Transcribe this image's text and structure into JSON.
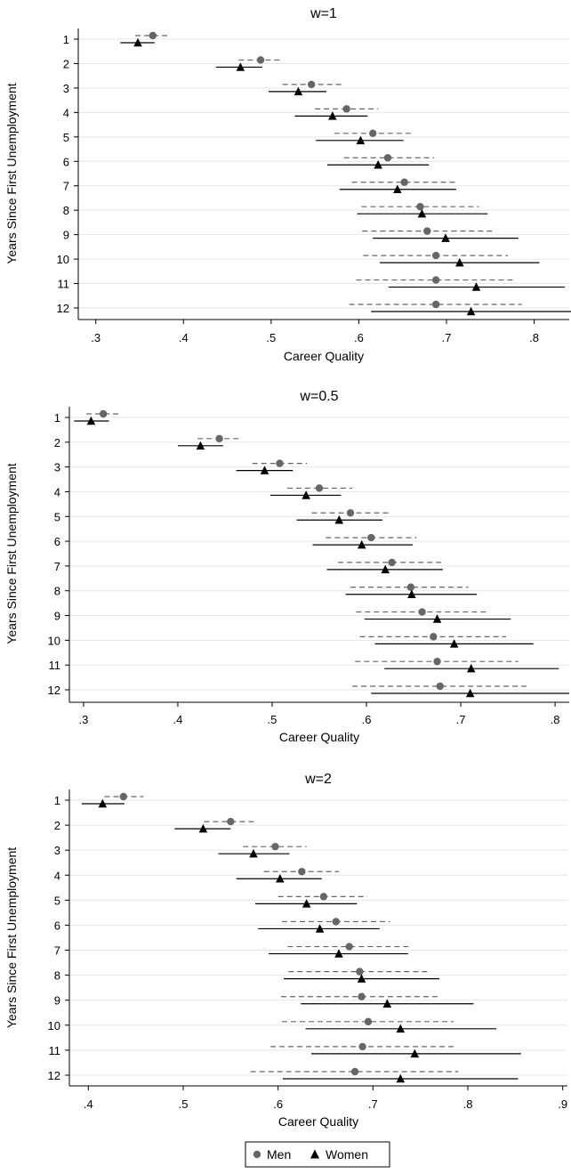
{
  "figure": {
    "legend": {
      "placement": "bottom-center",
      "entries": [
        {
          "label": "Men",
          "marker": "circle",
          "color": "#666666",
          "line": "dashed"
        },
        {
          "label": "Women",
          "marker": "triangle",
          "color": "#000000",
          "line": "solid"
        }
      ]
    }
  },
  "chart_data": [
    {
      "type": "scatter",
      "title": "w=1",
      "xlabel": "Career Quality",
      "ylabel": "Years Since First Unemployment",
      "xlim": [
        0.28,
        0.84
      ],
      "xticks": [
        0.3,
        0.4,
        0.5,
        0.6,
        0.7,
        0.8
      ],
      "xtick_labels": [
        ".3",
        ".4",
        ".5",
        ".6",
        ".7",
        ".8"
      ],
      "categories": [
        "1",
        "2",
        "3",
        "4",
        "5",
        "6",
        "7",
        "8",
        "9",
        "10",
        "11",
        "12"
      ],
      "grid": "horizontal",
      "series": [
        {
          "name": "Men",
          "color": "#666666",
          "marker": "circle",
          "line": "dashed",
          "values": [
            0.365,
            0.488,
            0.546,
            0.586,
            0.616,
            0.633,
            0.652,
            0.67,
            0.678,
            0.688,
            0.688,
            0.688
          ],
          "lower": [
            0.345,
            0.463,
            0.513,
            0.55,
            0.572,
            0.583,
            0.592,
            0.603,
            0.604,
            0.605,
            0.597,
            0.589
          ],
          "upper": [
            0.383,
            0.512,
            0.58,
            0.622,
            0.66,
            0.686,
            0.712,
            0.737,
            0.752,
            0.77,
            0.778,
            0.786
          ]
        },
        {
          "name": "Women",
          "color": "#000000",
          "marker": "triangle",
          "line": "solid",
          "values": [
            0.348,
            0.465,
            0.531,
            0.57,
            0.602,
            0.622,
            0.644,
            0.672,
            0.699,
            0.715,
            0.734,
            0.728
          ],
          "lower": [
            0.328,
            0.437,
            0.497,
            0.527,
            0.551,
            0.564,
            0.578,
            0.598,
            0.616,
            0.624,
            0.634,
            0.614
          ],
          "upper": [
            0.367,
            0.49,
            0.563,
            0.61,
            0.651,
            0.68,
            0.711,
            0.747,
            0.782,
            0.806,
            0.835,
            0.842
          ]
        }
      ]
    },
    {
      "type": "scatter",
      "title": "w=0.5",
      "xlabel": "Career Quality",
      "ylabel": "Years Since First Unemployment",
      "xlim": [
        0.285,
        0.815
      ],
      "xticks": [
        0.3,
        0.4,
        0.5,
        0.6,
        0.7,
        0.8
      ],
      "xtick_labels": [
        ".3",
        ".4",
        ".5",
        ".6",
        ".7",
        ".8"
      ],
      "categories": [
        "1",
        "2",
        "3",
        "4",
        "5",
        "6",
        "7",
        "8",
        "9",
        "10",
        "11",
        "12"
      ],
      "grid": "horizontal",
      "series": [
        {
          "name": "Men",
          "color": "#666666",
          "marker": "circle",
          "line": "dashed",
          "values": [
            0.321,
            0.444,
            0.508,
            0.55,
            0.583,
            0.605,
            0.627,
            0.647,
            0.659,
            0.671,
            0.675,
            0.678
          ],
          "lower": [
            0.303,
            0.421,
            0.479,
            0.516,
            0.542,
            0.557,
            0.57,
            0.583,
            0.589,
            0.593,
            0.588,
            0.585
          ],
          "upper": [
            0.34,
            0.467,
            0.537,
            0.585,
            0.624,
            0.653,
            0.681,
            0.708,
            0.727,
            0.748,
            0.761,
            0.772
          ]
        },
        {
          "name": "Women",
          "color": "#000000",
          "marker": "triangle",
          "line": "solid",
          "values": [
            0.308,
            0.424,
            0.492,
            0.536,
            0.571,
            0.595,
            0.62,
            0.648,
            0.675,
            0.693,
            0.711,
            0.71
          ],
          "lower": [
            0.29,
            0.4,
            0.462,
            0.498,
            0.526,
            0.543,
            0.558,
            0.578,
            0.598,
            0.609,
            0.619,
            0.605
          ],
          "upper": [
            0.327,
            0.448,
            0.522,
            0.573,
            0.617,
            0.649,
            0.681,
            0.717,
            0.753,
            0.777,
            0.804,
            0.815
          ]
        }
      ]
    },
    {
      "type": "scatter",
      "title": "w=2",
      "xlabel": "Career Quality",
      "ylabel": "Years Since First Unemployment",
      "xlim": [
        0.38,
        0.905
      ],
      "xticks": [
        0.4,
        0.5,
        0.6,
        0.7,
        0.8,
        0.9
      ],
      "xtick_labels": [
        ".4",
        ".5",
        ".6",
        ".7",
        ".8",
        ".9"
      ],
      "categories": [
        "1",
        "2",
        "3",
        "4",
        "5",
        "6",
        "7",
        "8",
        "9",
        "10",
        "11",
        "12"
      ],
      "grid": "horizontal",
      "series": [
        {
          "name": "Men",
          "color": "#666666",
          "marker": "circle",
          "line": "dashed",
          "values": [
            0.437,
            0.55,
            0.597,
            0.625,
            0.648,
            0.661,
            0.675,
            0.686,
            0.688,
            0.695,
            0.689,
            0.681
          ],
          "lower": [
            0.417,
            0.522,
            0.563,
            0.585,
            0.6,
            0.604,
            0.61,
            0.611,
            0.603,
            0.604,
            0.592,
            0.571
          ],
          "upper": [
            0.458,
            0.577,
            0.63,
            0.664,
            0.694,
            0.718,
            0.738,
            0.76,
            0.77,
            0.785,
            0.785,
            0.79
          ]
        },
        {
          "name": "Women",
          "color": "#000000",
          "marker": "triangle",
          "line": "solid",
          "values": [
            0.415,
            0.521,
            0.574,
            0.602,
            0.63,
            0.644,
            0.664,
            0.688,
            0.715,
            0.729,
            0.744,
            0.729
          ],
          "lower": [
            0.393,
            0.491,
            0.537,
            0.556,
            0.576,
            0.579,
            0.59,
            0.606,
            0.624,
            0.629,
            0.635,
            0.605
          ],
          "upper": [
            0.438,
            0.55,
            0.612,
            0.646,
            0.683,
            0.707,
            0.737,
            0.77,
            0.806,
            0.83,
            0.856,
            0.853
          ]
        }
      ]
    }
  ]
}
